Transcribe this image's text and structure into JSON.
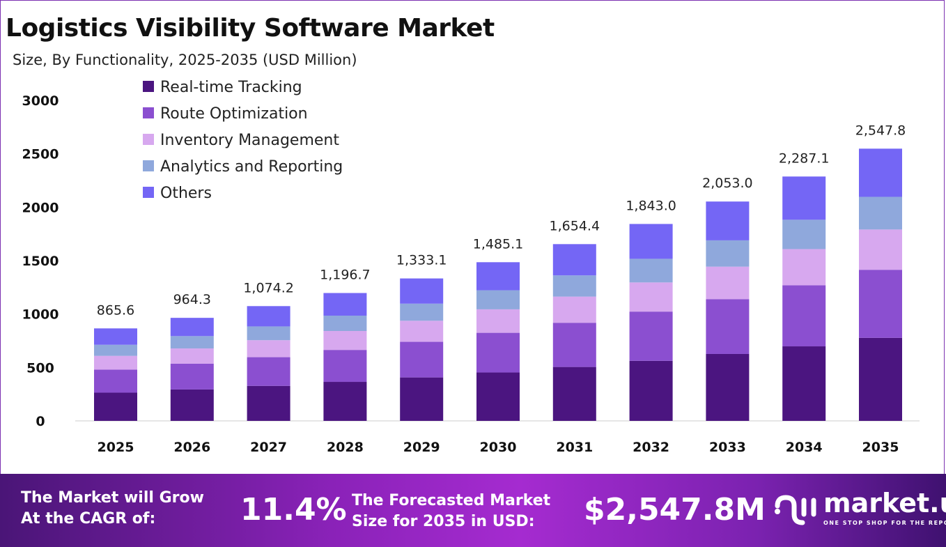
{
  "chart_data": {
    "type": "stacked-bar",
    "title": "Logistics Visibility Software Market",
    "subtitle": "Size, By Functionality, 2025-2035 (USD Million)",
    "categories": [
      "2025",
      "2026",
      "2027",
      "2028",
      "2029",
      "2030",
      "2031",
      "2032",
      "2033",
      "2034",
      "2035"
    ],
    "totals": [
      "865.6",
      "964.3",
      "1,074.2",
      "1,196.7",
      "1,333.1",
      "1,485.1",
      "1,654.4",
      "1,843.0",
      "2,053.0",
      "2,287.1",
      "2,547.8"
    ],
    "series": [
      {
        "name": "Real-time Tracking",
        "color": "#4b1580",
        "values": [
          264.0,
          294.1,
          327.6,
          365.0,
          406.6,
          453.0,
          504.6,
          562.1,
          626.2,
          697.6,
          777.1
        ]
      },
      {
        "name": "Route Optimization",
        "color": "#8b4fd0",
        "values": [
          216.4,
          241.1,
          268.6,
          299.2,
          333.3,
          371.3,
          413.6,
          460.8,
          513.3,
          571.8,
          637.0
        ]
      },
      {
        "name": "Inventory Management",
        "color": "#d7a8ef",
        "values": [
          128.1,
          142.7,
          159.0,
          177.1,
          197.3,
          219.8,
          244.9,
          272.8,
          303.8,
          338.5,
          377.1
        ]
      },
      {
        "name": "Analytics and Reporting",
        "color": "#8fa8dc",
        "values": [
          103.9,
          115.7,
          128.9,
          143.6,
          160.0,
          178.2,
          198.5,
          221.2,
          246.4,
          274.5,
          305.7
        ]
      },
      {
        "name": "Others",
        "color": "#7466f5",
        "values": [
          153.2,
          170.7,
          190.1,
          211.8,
          235.9,
          262.8,
          292.8,
          326.1,
          363.3,
          404.7,
          450.9
        ]
      }
    ],
    "yticks": [
      "0",
      "500",
      "1000",
      "1500",
      "2000",
      "2500",
      "3000"
    ],
    "ylim": [
      0,
      3000
    ],
    "grid": false,
    "legend": "top-left"
  },
  "footer": {
    "cagr_label": [
      "The Market will Grow",
      "At the CAGR of:"
    ],
    "cagr_value": "11.4%",
    "forecast_label": [
      "The Forecasted Market",
      "Size for 2035 in USD:"
    ],
    "forecast_value": "$2,547.8M",
    "logo_name": "market.us",
    "logo_tagline": "ONE STOP SHOP FOR THE REPORTS"
  }
}
